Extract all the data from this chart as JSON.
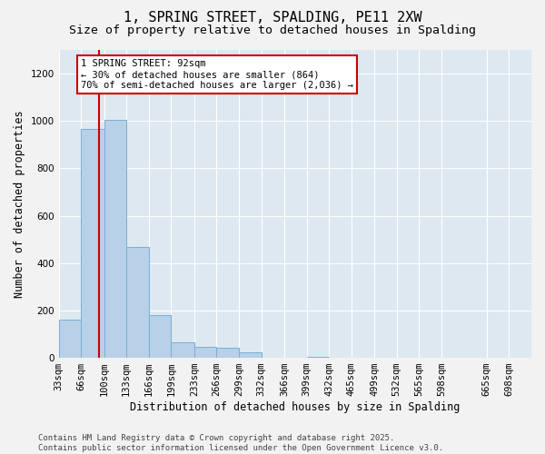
{
  "title": "1, SPRING STREET, SPALDING, PE11 2XW",
  "subtitle": "Size of property relative to detached houses in Spalding",
  "xlabel": "Distribution of detached houses by size in Spalding",
  "ylabel": "Number of detached properties",
  "bar_color": "#b8d0e8",
  "bar_edge_color": "#7aafd4",
  "bg_color": "#dde8f0",
  "grid_color": "#ffffff",
  "annotation_box_color": "#cc0000",
  "vline_color": "#cc0000",
  "property_line_x": 92,
  "annotation_line1": "1 SPRING STREET: 92sqm",
  "annotation_line2": "← 30% of detached houses are smaller (864)",
  "annotation_line3": "70% of semi-detached houses are larger (2,036) →",
  "categories": [
    "33sqm",
    "66sqm",
    "100sqm",
    "133sqm",
    "166sqm",
    "199sqm",
    "233sqm",
    "266sqm",
    "299sqm",
    "332sqm",
    "366sqm",
    "399sqm",
    "432sqm",
    "465sqm",
    "499sqm",
    "532sqm",
    "565sqm",
    "598sqm",
    "665sqm",
    "698sqm"
  ],
  "bin_edges": [
    33,
    66,
    100,
    133,
    166,
    199,
    233,
    266,
    299,
    332,
    366,
    399,
    432,
    465,
    499,
    532,
    565,
    598,
    665,
    698,
    731
  ],
  "values": [
    163,
    968,
    1006,
    468,
    181,
    66,
    47,
    42,
    23,
    0,
    0,
    3,
    0,
    0,
    0,
    0,
    0,
    0,
    0,
    0
  ],
  "ylim": [
    0,
    1300
  ],
  "yticks": [
    0,
    200,
    400,
    600,
    800,
    1000,
    1200
  ],
  "footer_text": "Contains HM Land Registry data © Crown copyright and database right 2025.\nContains public sector information licensed under the Open Government Licence v3.0.",
  "title_fontsize": 11,
  "subtitle_fontsize": 9.5,
  "axis_label_fontsize": 8.5,
  "tick_fontsize": 7.5,
  "annotation_fontsize": 7.5,
  "footer_fontsize": 6.5
}
